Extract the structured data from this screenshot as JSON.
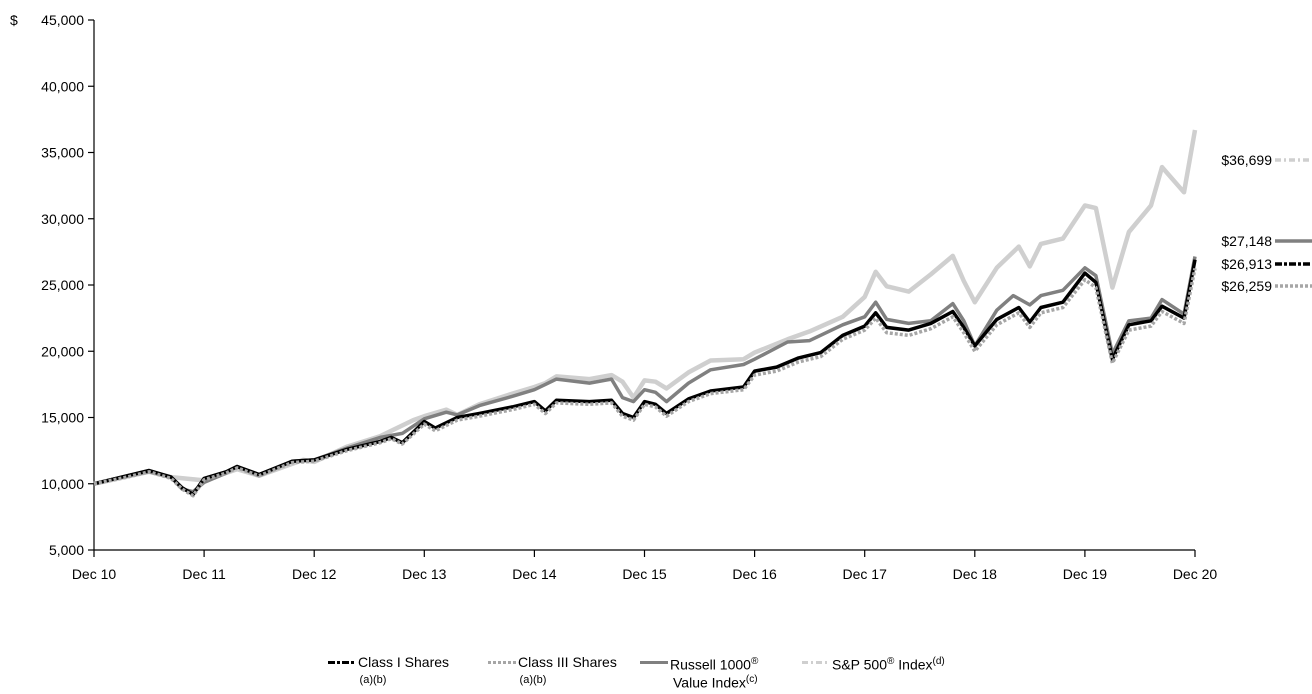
{
  "chart_data": {
    "type": "line",
    "y_prefix": "$",
    "ylim": [
      5000,
      45000
    ],
    "yticks": [
      5000,
      10000,
      15000,
      20000,
      25000,
      30000,
      35000,
      40000,
      45000
    ],
    "ytick_labels": [
      "5,000",
      "10,000",
      "15,000",
      "20,000",
      "25,000",
      "30,000",
      "35,000",
      "40,000",
      "45,000"
    ],
    "xticks": [
      "Dec 10",
      "Dec 11",
      "Dec 12",
      "Dec 13",
      "Dec 14",
      "Dec 15",
      "Dec 16",
      "Dec 17",
      "Dec 18",
      "Dec 19",
      "Dec 20"
    ],
    "grid": false,
    "legend_position": "bottom",
    "series": [
      {
        "name": "S&P 500® Index",
        "footnote": "(d)",
        "color": "#cfcfcf",
        "end_label": "$36,699",
        "points": [
          [
            0,
            10000
          ],
          [
            0.5,
            10900
          ],
          [
            0.7,
            10500
          ],
          [
            1.0,
            10250
          ],
          [
            1.3,
            11100
          ],
          [
            1.5,
            10600
          ],
          [
            1.9,
            11800
          ],
          [
            2.0,
            11650
          ],
          [
            2.3,
            12800
          ],
          [
            2.6,
            13600
          ],
          [
            2.9,
            14800
          ],
          [
            3.0,
            15100
          ],
          [
            3.2,
            15600
          ],
          [
            3.3,
            15200
          ],
          [
            3.5,
            16000
          ],
          [
            3.8,
            16800
          ],
          [
            4.0,
            17300
          ],
          [
            4.1,
            17600
          ],
          [
            4.2,
            18100
          ],
          [
            4.5,
            17900
          ],
          [
            4.7,
            18200
          ],
          [
            4.8,
            17700
          ],
          [
            4.9,
            16500
          ],
          [
            5.0,
            17800
          ],
          [
            5.1,
            17700
          ],
          [
            5.2,
            17200
          ],
          [
            5.4,
            18400
          ],
          [
            5.6,
            19300
          ],
          [
            5.9,
            19400
          ],
          [
            6.0,
            19900
          ],
          [
            6.3,
            20900
          ],
          [
            6.5,
            21500
          ],
          [
            6.8,
            22600
          ],
          [
            7.0,
            24100
          ],
          [
            7.1,
            26000
          ],
          [
            7.2,
            24900
          ],
          [
            7.4,
            24500
          ],
          [
            7.6,
            25800
          ],
          [
            7.8,
            27200
          ],
          [
            7.9,
            25300
          ],
          [
            8.0,
            23700
          ],
          [
            8.2,
            26300
          ],
          [
            8.4,
            27900
          ],
          [
            8.5,
            26400
          ],
          [
            8.6,
            28100
          ],
          [
            8.8,
            28500
          ],
          [
            9.0,
            31000
          ],
          [
            9.1,
            30800
          ],
          [
            9.25,
            24800
          ],
          [
            9.4,
            29000
          ],
          [
            9.6,
            31000
          ],
          [
            9.7,
            33900
          ],
          [
            9.9,
            32000
          ],
          [
            10.0,
            36699
          ]
        ]
      },
      {
        "name": "Russell 1000® Value Index",
        "footnote": "(c)",
        "color": "#808080",
        "end_label": "$27,148",
        "points": [
          [
            0,
            10000
          ],
          [
            0.3,
            10600
          ],
          [
            0.5,
            10900
          ],
          [
            0.7,
            10500
          ],
          [
            0.8,
            9600
          ],
          [
            0.9,
            9400
          ],
          [
            1.0,
            10100
          ],
          [
            1.2,
            10800
          ],
          [
            1.3,
            11300
          ],
          [
            1.5,
            10600
          ],
          [
            1.8,
            11700
          ],
          [
            2.0,
            11800
          ],
          [
            2.3,
            12700
          ],
          [
            2.6,
            13500
          ],
          [
            2.8,
            13800
          ],
          [
            3.0,
            14900
          ],
          [
            3.2,
            15400
          ],
          [
            3.3,
            15200
          ],
          [
            3.5,
            15900
          ],
          [
            3.8,
            16600
          ],
          [
            4.0,
            17100
          ],
          [
            4.1,
            17500
          ],
          [
            4.2,
            17900
          ],
          [
            4.5,
            17600
          ],
          [
            4.7,
            17900
          ],
          [
            4.8,
            16500
          ],
          [
            4.9,
            16200
          ],
          [
            5.0,
            17100
          ],
          [
            5.1,
            16900
          ],
          [
            5.2,
            16200
          ],
          [
            5.4,
            17600
          ],
          [
            5.6,
            18600
          ],
          [
            5.9,
            19000
          ],
          [
            6.0,
            19400
          ],
          [
            6.3,
            20700
          ],
          [
            6.5,
            20800
          ],
          [
            6.8,
            22000
          ],
          [
            7.0,
            22600
          ],
          [
            7.1,
            23700
          ],
          [
            7.2,
            22400
          ],
          [
            7.4,
            22100
          ],
          [
            7.6,
            22300
          ],
          [
            7.8,
            23600
          ],
          [
            7.9,
            22300
          ],
          [
            8.0,
            20400
          ],
          [
            8.2,
            23100
          ],
          [
            8.35,
            24200
          ],
          [
            8.5,
            23500
          ],
          [
            8.6,
            24200
          ],
          [
            8.8,
            24600
          ],
          [
            9.0,
            26300
          ],
          [
            9.1,
            25700
          ],
          [
            9.25,
            19800
          ],
          [
            9.4,
            22300
          ],
          [
            9.6,
            22500
          ],
          [
            9.7,
            23900
          ],
          [
            9.9,
            22800
          ],
          [
            10.0,
            27148
          ]
        ]
      },
      {
        "name": "Class I Shares",
        "footnote": "(a)(b)",
        "color": "#000000",
        "end_label": "$26,913",
        "points": [
          [
            0,
            10000
          ],
          [
            0.3,
            10600
          ],
          [
            0.5,
            11000
          ],
          [
            0.7,
            10500
          ],
          [
            0.8,
            9700
          ],
          [
            0.9,
            9200
          ],
          [
            1.0,
            10400
          ],
          [
            1.2,
            10900
          ],
          [
            1.3,
            11300
          ],
          [
            1.5,
            10700
          ],
          [
            1.8,
            11700
          ],
          [
            2.0,
            11800
          ],
          [
            2.3,
            12600
          ],
          [
            2.6,
            13200
          ],
          [
            2.7,
            13500
          ],
          [
            2.8,
            13100
          ],
          [
            3.0,
            14700
          ],
          [
            3.1,
            14200
          ],
          [
            3.3,
            15000
          ],
          [
            3.5,
            15300
          ],
          [
            3.8,
            15800
          ],
          [
            4.0,
            16200
          ],
          [
            4.1,
            15500
          ],
          [
            4.2,
            16300
          ],
          [
            4.5,
            16200
          ],
          [
            4.7,
            16300
          ],
          [
            4.8,
            15300
          ],
          [
            4.9,
            15000
          ],
          [
            5.0,
            16200
          ],
          [
            5.1,
            16000
          ],
          [
            5.2,
            15300
          ],
          [
            5.4,
            16400
          ],
          [
            5.6,
            17000
          ],
          [
            5.9,
            17300
          ],
          [
            6.0,
            18500
          ],
          [
            6.2,
            18800
          ],
          [
            6.4,
            19500
          ],
          [
            6.6,
            19900
          ],
          [
            6.8,
            21200
          ],
          [
            7.0,
            21900
          ],
          [
            7.1,
            22900
          ],
          [
            7.2,
            21800
          ],
          [
            7.4,
            21600
          ],
          [
            7.6,
            22100
          ],
          [
            7.8,
            23000
          ],
          [
            7.9,
            21800
          ],
          [
            8.0,
            20400
          ],
          [
            8.2,
            22400
          ],
          [
            8.4,
            23300
          ],
          [
            8.5,
            22200
          ],
          [
            8.6,
            23300
          ],
          [
            8.8,
            23700
          ],
          [
            9.0,
            25900
          ],
          [
            9.1,
            25200
          ],
          [
            9.25,
            19400
          ],
          [
            9.4,
            22000
          ],
          [
            9.6,
            22300
          ],
          [
            9.7,
            23400
          ],
          [
            9.9,
            22500
          ],
          [
            10.0,
            26913
          ]
        ]
      },
      {
        "name": "Class III Shares",
        "footnote": "(a)(b)",
        "color": "#a6a6a6",
        "end_label": "$26,259",
        "points": [
          [
            0,
            10000
          ],
          [
            0.3,
            10500
          ],
          [
            0.5,
            10900
          ],
          [
            0.7,
            10400
          ],
          [
            0.8,
            9600
          ],
          [
            0.9,
            9100
          ],
          [
            1.0,
            10300
          ],
          [
            1.2,
            10800
          ],
          [
            1.3,
            11200
          ],
          [
            1.5,
            10600
          ],
          [
            1.8,
            11600
          ],
          [
            2.0,
            11700
          ],
          [
            2.3,
            12500
          ],
          [
            2.6,
            13100
          ],
          [
            2.7,
            13400
          ],
          [
            2.8,
            13000
          ],
          [
            3.0,
            14500
          ],
          [
            3.1,
            14000
          ],
          [
            3.3,
            14800
          ],
          [
            3.5,
            15100
          ],
          [
            3.8,
            15600
          ],
          [
            4.0,
            16000
          ],
          [
            4.1,
            15300
          ],
          [
            4.2,
            16100
          ],
          [
            4.5,
            16000
          ],
          [
            4.7,
            16100
          ],
          [
            4.8,
            15100
          ],
          [
            4.9,
            14800
          ],
          [
            5.0,
            16000
          ],
          [
            5.1,
            15800
          ],
          [
            5.2,
            15100
          ],
          [
            5.4,
            16200
          ],
          [
            5.6,
            16800
          ],
          [
            5.9,
            17100
          ],
          [
            6.0,
            18200
          ],
          [
            6.2,
            18500
          ],
          [
            6.4,
            19200
          ],
          [
            6.6,
            19600
          ],
          [
            6.8,
            20900
          ],
          [
            7.0,
            21600
          ],
          [
            7.1,
            22500
          ],
          [
            7.2,
            21400
          ],
          [
            7.4,
            21200
          ],
          [
            7.6,
            21700
          ],
          [
            7.8,
            22600
          ],
          [
            7.9,
            21400
          ],
          [
            8.0,
            20000
          ],
          [
            8.2,
            22000
          ],
          [
            8.4,
            22900
          ],
          [
            8.5,
            21800
          ],
          [
            8.6,
            22900
          ],
          [
            8.8,
            23300
          ],
          [
            9.0,
            25400
          ],
          [
            9.1,
            24800
          ],
          [
            9.25,
            19100
          ],
          [
            9.4,
            21600
          ],
          [
            9.6,
            21900
          ],
          [
            9.7,
            23000
          ],
          [
            9.9,
            22100
          ],
          [
            10.0,
            26259
          ]
        ]
      }
    ]
  },
  "legend": [
    {
      "label": "Class I Shares",
      "sup": "",
      "sub": "(a)(b)",
      "color": "#000000",
      "dash": "6,2,2,2"
    },
    {
      "label": "Class III Shares",
      "sup": "",
      "sub": "(a)(b)",
      "color": "#a6a6a6",
      "dash": "3,2"
    },
    {
      "label": "Russell 1000",
      "sup": "®",
      "label2": "Value Index",
      "sup2": "(c)",
      "color": "#808080",
      "dash": ""
    },
    {
      "label": "S&P 500",
      "sup": "®",
      "label_after": " Index",
      "sup2": "(d)",
      "color": "#cfcfcf",
      "dash": "6,3,2,3"
    }
  ]
}
